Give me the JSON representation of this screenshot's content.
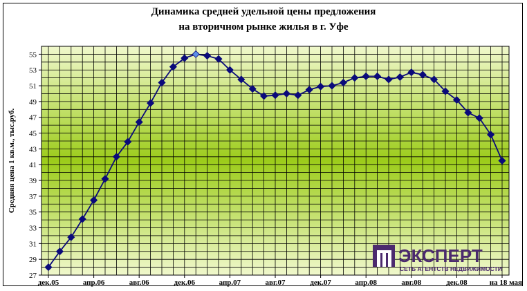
{
  "chart_data": {
    "type": "line",
    "title_lines": [
      "Динамика средней удельной цены предложения",
      "на вторичном рынке жилья в г. Уфе"
    ],
    "ylabel": "Средняя цена 1 кв.м., тыс.руб.",
    "xlabel": "",
    "ylim": [
      27,
      56
    ],
    "y_ticks": [
      27,
      29,
      31,
      33,
      35,
      37,
      39,
      41,
      43,
      45,
      47,
      49,
      51,
      53,
      55
    ],
    "x_tick_labels": [
      "дек.05",
      "апр.06",
      "авг.06",
      "дек.06",
      "апр.07",
      "авг.07",
      "дек.07",
      "апр.08",
      "авг.08",
      "дек.08",
      "на 18 мая"
    ],
    "x_tick_indices": [
      0,
      4,
      8,
      12,
      16,
      20,
      24,
      28,
      32,
      36,
      40
    ],
    "grid": true,
    "highlighted_point_index": 13,
    "series": [
      {
        "values": [
          28.0,
          30.0,
          31.8,
          34.1,
          36.5,
          39.2,
          42.0,
          43.9,
          46.4,
          48.8,
          51.4,
          53.4,
          54.5,
          55.0,
          54.8,
          54.4,
          53.0,
          51.8,
          50.6,
          49.7,
          49.8,
          50.0,
          49.8,
          50.5,
          50.9,
          51.0,
          51.4,
          52.0,
          52.2,
          52.2,
          51.8,
          52.1,
          52.7,
          52.4,
          51.8,
          50.3,
          49.2,
          47.6,
          46.9,
          44.8,
          41.5
        ],
        "color": "#0a0a7a",
        "marker": "diamond"
      }
    ]
  },
  "logo": {
    "name": "ЭКСПЕРТ",
    "tagline": "СЕТЬ АГЕНТСТВ НЕДВИЖИМОСТИ",
    "color": "#4b2a6e"
  },
  "colors": {
    "plot_gradient_edge": "#f0f8cc",
    "plot_gradient_center": "#9ccc1a",
    "grid": "#000000",
    "marker_highlight": "#5b8fe8"
  }
}
